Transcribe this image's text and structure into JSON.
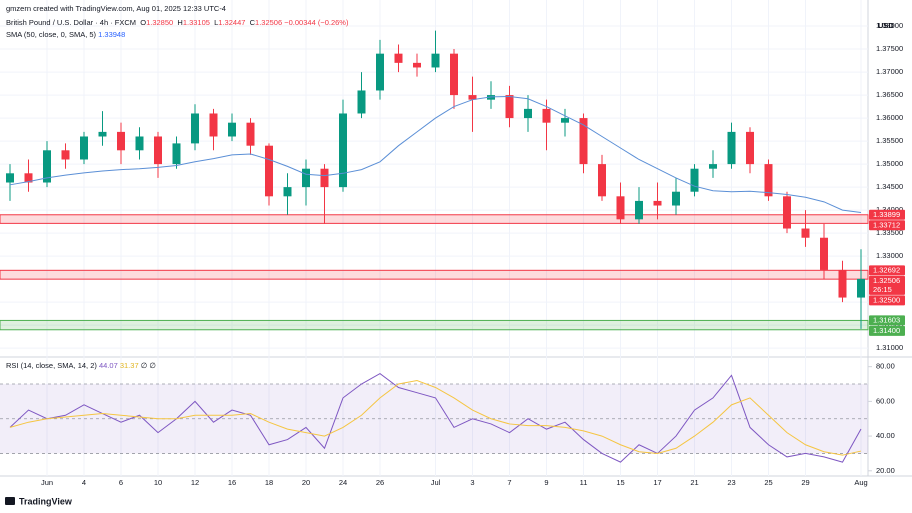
{
  "header": {
    "credit": "gmzern created with TradingView.com, Aug 01, 2025 12:33 UTC-4",
    "symbol": "British Pound / U.S. Dollar · 4h · FXCM",
    "ohlc": [
      {
        "key": "O",
        "value": "1.32850"
      },
      {
        "key": "H",
        "value": "1.33105"
      },
      {
        "key": "L",
        "value": "1.32447"
      },
      {
        "key": "C",
        "value": "1.32506"
      }
    ],
    "change": "−0.00344 (−0.26%)"
  },
  "footer": {
    "logo": "TradingView"
  },
  "chart_data": [
    {
      "type": "candlestick",
      "currency": "USD",
      "categories": [
        null,
        null,
        "Jun",
        null,
        "4",
        null,
        "6",
        null,
        "10",
        null,
        "12",
        null,
        "16",
        null,
        "18",
        null,
        "20",
        null,
        "24",
        null,
        "26",
        null,
        null,
        "Jul",
        null,
        "3",
        null,
        "7",
        null,
        "9",
        null,
        "11",
        null,
        "15",
        null,
        "17",
        null,
        "21",
        null,
        "23",
        null,
        "25",
        null,
        "29",
        null,
        null,
        "Aug"
      ],
      "open": [
        1.346,
        1.348,
        1.346,
        1.353,
        1.351,
        1.356,
        1.357,
        1.353,
        1.356,
        1.35,
        1.3545,
        1.361,
        1.356,
        1.359,
        1.354,
        1.343,
        1.345,
        1.349,
        1.345,
        1.361,
        1.366,
        1.374,
        1.372,
        1.371,
        1.374,
        1.365,
        1.364,
        1.365,
        1.36,
        1.362,
        1.359,
        1.36,
        1.35,
        1.343,
        1.338,
        1.342,
        1.341,
        1.344,
        1.349,
        1.35,
        1.357,
        1.35,
        1.343,
        1.336,
        1.334,
        1.327,
        1.321
      ],
      "high": [
        1.35,
        1.351,
        1.355,
        1.3545,
        1.357,
        1.3615,
        1.359,
        1.358,
        1.357,
        1.356,
        1.363,
        1.362,
        1.361,
        1.36,
        1.3545,
        1.348,
        1.351,
        1.35,
        1.364,
        1.37,
        1.377,
        1.376,
        1.374,
        1.379,
        1.375,
        1.369,
        1.368,
        1.367,
        1.365,
        1.364,
        1.362,
        1.361,
        1.352,
        1.346,
        1.345,
        1.346,
        1.347,
        1.35,
        1.353,
        1.359,
        1.358,
        1.351,
        1.344,
        1.34,
        1.337,
        1.329,
        1.3315
      ],
      "low": [
        1.342,
        1.344,
        1.345,
        1.349,
        1.35,
        1.354,
        1.35,
        1.351,
        1.347,
        1.349,
        1.353,
        1.353,
        1.355,
        1.352,
        1.341,
        1.339,
        1.341,
        1.337,
        1.344,
        1.36,
        1.364,
        1.37,
        1.369,
        1.37,
        1.362,
        1.357,
        1.362,
        1.358,
        1.357,
        1.353,
        1.356,
        1.348,
        1.342,
        1.337,
        1.337,
        1.338,
        1.339,
        1.343,
        1.347,
        1.349,
        1.348,
        1.342,
        1.335,
        1.332,
        1.325,
        1.32,
        1.3142
      ],
      "close": [
        1.348,
        1.346,
        1.353,
        1.351,
        1.356,
        1.357,
        1.353,
        1.356,
        1.35,
        1.3545,
        1.361,
        1.356,
        1.359,
        1.354,
        1.343,
        1.345,
        1.349,
        1.345,
        1.361,
        1.366,
        1.374,
        1.372,
        1.371,
        1.374,
        1.365,
        1.364,
        1.365,
        1.36,
        1.362,
        1.359,
        1.36,
        1.35,
        1.343,
        1.338,
        1.342,
        1.341,
        1.344,
        1.349,
        1.35,
        1.357,
        1.35,
        1.343,
        1.336,
        1.334,
        1.327,
        1.321,
        1.32506
      ],
      "up_color": "#089981",
      "down_color": "#f23645",
      "overlay": {
        "name": "SMA (50, close, 0, SMA, 5)",
        "color": "#5b8fd6",
        "value_label": "1.33948",
        "values": [
          1.3455,
          1.3462,
          1.347,
          1.3476,
          1.3481,
          1.3485,
          1.3488,
          1.349,
          1.3493,
          1.3497,
          1.3505,
          1.3512,
          1.352,
          1.3522,
          1.351,
          1.3495,
          1.3478,
          1.3475,
          1.348,
          1.3488,
          1.3505,
          1.354,
          1.357,
          1.36,
          1.3625,
          1.364,
          1.3646,
          1.3647,
          1.3642,
          1.3625,
          1.3605,
          1.3585,
          1.356,
          1.3535,
          1.351,
          1.349,
          1.347,
          1.3452,
          1.3442,
          1.344,
          1.3441,
          1.3438,
          1.3434,
          1.3428,
          1.3418,
          1.34,
          1.33948
        ]
      },
      "zones": [
        {
          "from": {
            "value": 1.33712,
            "label": "1.33712"
          },
          "to": {
            "value": 1.33899,
            "label": "1.33899"
          },
          "color": "#f23645"
        },
        {
          "from": {
            "value": 1.325,
            "label": "1.32500"
          },
          "to": {
            "value": 1.32692,
            "label": "1.32692"
          },
          "color": "#f23645"
        },
        {
          "from": {
            "value": 1.314,
            "label": "1.31400"
          },
          "to": {
            "value": 1.31603,
            "label": "1.31603"
          },
          "color": "#4caf50"
        }
      ],
      "last_price": {
        "value": 1.32506,
        "label": "1.32506",
        "countdown": "26:15",
        "color": "#f23645"
      },
      "ylim": [
        1.3083,
        1.3824
      ],
      "yticks": [
        {
          "value": 1.31,
          "label": "1.31000"
        },
        {
          "value": 1.315,
          "label": "1.31500"
        },
        {
          "value": 1.32,
          "label": "1.32000"
        },
        {
          "value": 1.325,
          "label": "1.32500"
        },
        {
          "value": 1.33,
          "label": "1.33000"
        },
        {
          "value": 1.335,
          "label": "1.33500"
        },
        {
          "value": 1.34,
          "label": "1.34000"
        },
        {
          "value": 1.345,
          "label": "1.34500"
        },
        {
          "value": 1.35,
          "label": "1.35000"
        },
        {
          "value": 1.355,
          "label": "1.35500"
        },
        {
          "value": 1.36,
          "label": "1.36000"
        },
        {
          "value": 1.365,
          "label": "1.36500"
        },
        {
          "value": 1.37,
          "label": "1.37000"
        },
        {
          "value": 1.375,
          "label": "1.37500"
        },
        {
          "value": 1.38,
          "label": "1.38000"
        }
      ],
      "grid": true
    },
    {
      "type": "line",
      "title": "RSI (14, close, SMA, 14, 2)",
      "extra": "∅ ∅",
      "series": [
        {
          "color": "#7e57c2",
          "value_label": "44.07",
          "values": [
            45,
            55,
            50,
            52,
            58,
            53,
            48,
            52,
            42,
            50,
            60,
            48,
            55,
            52,
            35,
            38,
            45,
            33,
            62,
            70,
            76,
            68,
            65,
            62,
            45,
            50,
            47,
            42,
            50,
            44,
            48,
            38,
            30,
            25,
            35,
            30,
            40,
            55,
            62,
            75,
            45,
            35,
            28,
            30,
            28,
            25,
            44.07
          ]
        },
        {
          "color": "#f5c542",
          "value_label": "31.37",
          "values": [
            45,
            48,
            50,
            51,
            52,
            53,
            52,
            51,
            50,
            50,
            52,
            52,
            52,
            53,
            48,
            44,
            42,
            40,
            45,
            52,
            62,
            70,
            72,
            68,
            62,
            55,
            50,
            47,
            46,
            46,
            45,
            43,
            40,
            35,
            31,
            30,
            33,
            40,
            48,
            58,
            62,
            52,
            42,
            35,
            31,
            29,
            31.37
          ]
        }
      ],
      "band": [
        30,
        70
      ],
      "levels": [
        70,
        50,
        30
      ],
      "ylim": [
        17,
        85
      ],
      "yticks": [
        {
          "value": 20,
          "label": "20.00"
        },
        {
          "value": 40,
          "label": "40.00"
        },
        {
          "value": 60,
          "label": "60.00"
        },
        {
          "value": 80,
          "label": "80.00"
        }
      ]
    }
  ]
}
